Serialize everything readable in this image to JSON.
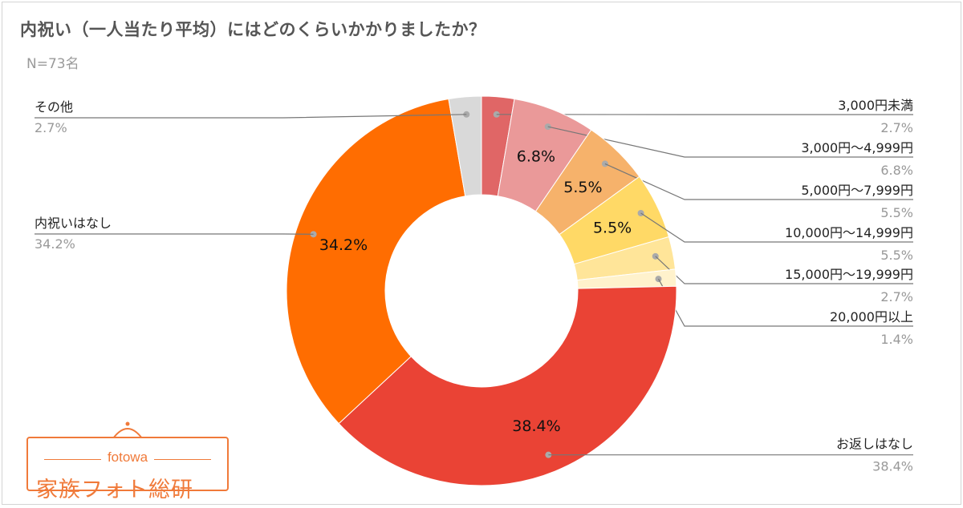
{
  "title": "内祝い（一人当たり平均）にはどのくらいかかりましたか？",
  "subtitle": "N=73名",
  "chart_data": {
    "type": "pie",
    "donut": true,
    "legend": "leader-lines",
    "slices": [
      {
        "label": "3,000円未満",
        "value": 2.7,
        "pct_label": "2.7%",
        "color": "#e06666",
        "inner_label": ""
      },
      {
        "label": "3,000円～4,999円",
        "value": 6.8,
        "pct_label": "6.8%",
        "color": "#ea9999",
        "inner_label": "6.8%"
      },
      {
        "label": "5,000円～7,999円",
        "value": 5.5,
        "pct_label": "5.5%",
        "color": "#f6b26b",
        "inner_label": "5.5%"
      },
      {
        "label": "10,000円～14,999円",
        "value": 5.5,
        "pct_label": "5.5%",
        "color": "#ffd966",
        "inner_label": "5.5%"
      },
      {
        "label": "15,000円～19,999円",
        "value": 2.7,
        "pct_label": "2.7%",
        "color": "#ffe599",
        "inner_label": ""
      },
      {
        "label": "20,000円以上",
        "value": 1.4,
        "pct_label": "1.4%",
        "color": "#fff2cc",
        "inner_label": ""
      },
      {
        "label": "お返しはなし",
        "value": 38.4,
        "pct_label": "38.4%",
        "color": "#ea4335",
        "inner_label": "38.4%"
      },
      {
        "label": "内祝いはなし",
        "value": 34.2,
        "pct_label": "34.2%",
        "color": "#ff6d01",
        "inner_label": "34.2%"
      },
      {
        "label": "その他",
        "value": 2.7,
        "pct_label": "2.7%",
        "color": "#d9d9d9",
        "inner_label": ""
      }
    ]
  },
  "logo": {
    "small_text": "fotowa",
    "big_text": "家族フォト総研"
  }
}
